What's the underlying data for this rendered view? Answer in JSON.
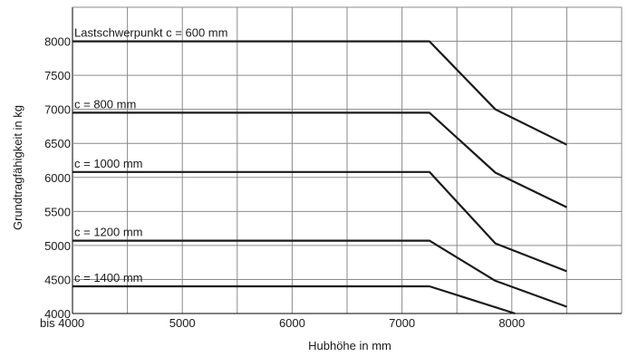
{
  "chart_data": {
    "type": "line",
    "title": "",
    "xlabel": "Hubhöhe in mm",
    "ylabel": "Grundtragfähigkeit in kg",
    "xlim": [
      4000,
      9000
    ],
    "ylim": [
      4000,
      8500
    ],
    "x_ticks": [
      {
        "value": 4000,
        "label": "bis 4000"
      },
      {
        "value": 5000,
        "label": "5000"
      },
      {
        "value": 6000,
        "label": "6000"
      },
      {
        "value": 7000,
        "label": "7000"
      },
      {
        "value": 8000,
        "label": "8000"
      }
    ],
    "y_ticks": [
      {
        "value": 4000,
        "label": "4000"
      },
      {
        "value": 4500,
        "label": "4500"
      },
      {
        "value": 5000,
        "label": "5000"
      },
      {
        "value": 5500,
        "label": "5500"
      },
      {
        "value": 6000,
        "label": "6000"
      },
      {
        "value": 6500,
        "label": "6500"
      },
      {
        "value": 7000,
        "label": "7000"
      },
      {
        "value": 7500,
        "label": "7500"
      },
      {
        "value": 8000,
        "label": "8000"
      }
    ],
    "grid": true,
    "series": [
      {
        "name": "Lastschwerpunkt c = 600 mm",
        "points": [
          [
            4000,
            8000
          ],
          [
            7250,
            8000
          ],
          [
            7850,
            7000
          ],
          [
            8500,
            6480
          ]
        ]
      },
      {
        "name": "c = 800 mm",
        "points": [
          [
            4000,
            6950
          ],
          [
            7250,
            6950
          ],
          [
            7850,
            6070
          ],
          [
            8500,
            5560
          ]
        ]
      },
      {
        "name": "c = 1000 mm",
        "points": [
          [
            4000,
            6080
          ],
          [
            7250,
            6080
          ],
          [
            7850,
            5030
          ],
          [
            8500,
            4620
          ]
        ]
      },
      {
        "name": "c = 1200 mm",
        "points": [
          [
            4000,
            5070
          ],
          [
            7250,
            5070
          ],
          [
            7850,
            4480
          ],
          [
            8500,
            4100
          ]
        ]
      },
      {
        "name": "c = 1400 mm",
        "points": [
          [
            4000,
            4400
          ],
          [
            7250,
            4400
          ],
          [
            8030,
            4000
          ]
        ]
      }
    ]
  }
}
